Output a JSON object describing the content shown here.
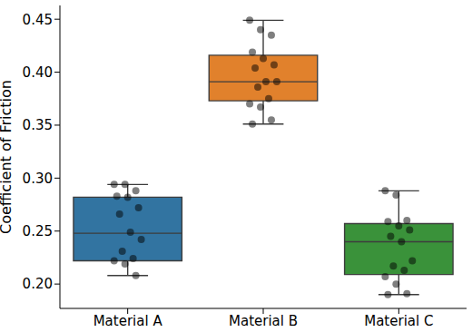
{
  "chart_data": {
    "type": "box",
    "y_label": "Coefficient of Friction",
    "categories": [
      "Material A",
      "Material B",
      "Material C"
    ],
    "colors": [
      "#3274a1",
      "#e1812c",
      "#3a923a"
    ],
    "boxes": [
      {
        "min": 0.208,
        "q1": 0.222,
        "median": 0.248,
        "q3": 0.282,
        "max": 0.294
      },
      {
        "min": 0.351,
        "q1": 0.373,
        "median": 0.391,
        "q3": 0.416,
        "max": 0.449
      },
      {
        "min": 0.19,
        "q1": 0.209,
        "median": 0.24,
        "q3": 0.257,
        "max": 0.288
      }
    ],
    "points": [
      [
        0.294,
        0.294,
        0.288,
        0.283,
        0.282,
        0.272,
        0.266,
        0.249,
        0.242,
        0.231,
        0.224,
        0.222,
        0.219,
        0.208
      ],
      [
        0.449,
        0.44,
        0.435,
        0.419,
        0.413,
        0.407,
        0.404,
        0.391,
        0.391,
        0.386,
        0.375,
        0.37,
        0.367,
        0.355,
        0.351
      ],
      [
        0.288,
        0.284,
        0.26,
        0.259,
        0.255,
        0.251,
        0.245,
        0.24,
        0.222,
        0.217,
        0.213,
        0.207,
        0.2,
        0.191,
        0.19
      ]
    ],
    "ylim": [
      0.177,
      0.463
    ],
    "yticks": [
      {
        "value": 0.2,
        "label": "0.20"
      },
      0.25,
      {
        "value": 0.3,
        "label": "0.30"
      },
      0.35,
      {
        "value": 0.4,
        "label": "0.40"
      },
      0.45
    ],
    "grid": false
  }
}
